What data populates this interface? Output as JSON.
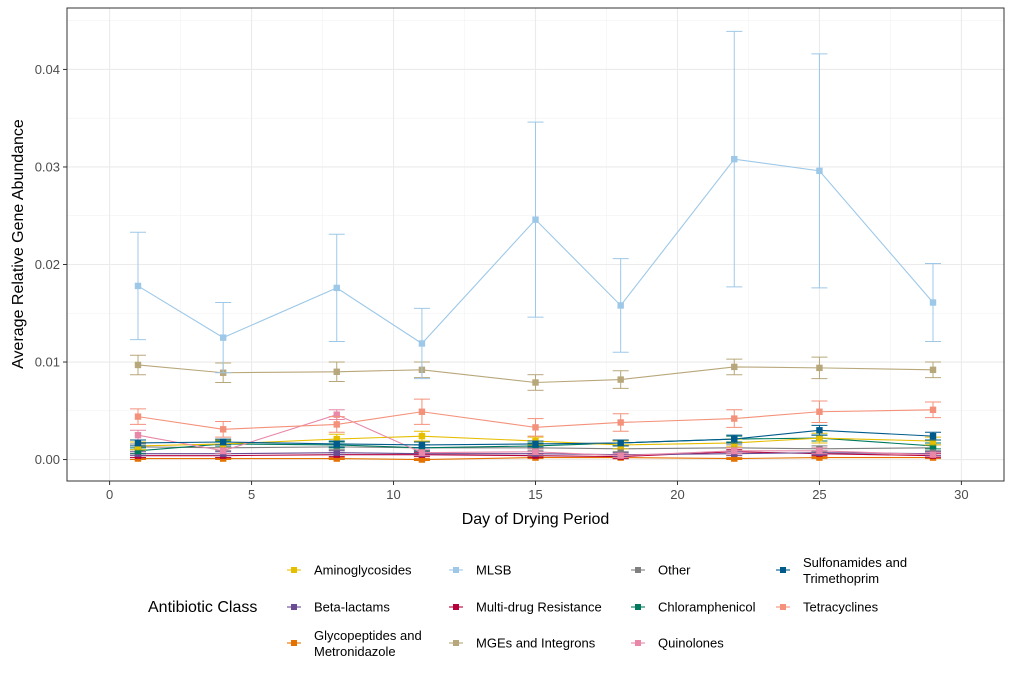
{
  "chart_data": {
    "type": "line",
    "title": "",
    "xlabel": "Day of Drying Period",
    "ylabel": "Average Relative Gene Abundance",
    "xlim": [
      -1.5,
      31.5
    ],
    "ylim": [
      -0.0022,
      0.0463
    ],
    "x_ticks": [
      0,
      5,
      10,
      15,
      20,
      25,
      30
    ],
    "y_ticks": [
      0.0,
      0.01,
      0.02,
      0.03,
      0.04
    ],
    "y_tick_labels": [
      "0.00",
      "0.01",
      "0.02",
      "0.03",
      "0.04"
    ],
    "x_tick_labels": [
      "0",
      "5",
      "10",
      "15",
      "20",
      "25",
      "30"
    ],
    "grid": true,
    "legend_title": "Antibiotic Class",
    "legend_position": "bottom",
    "x": [
      1,
      4,
      8,
      11,
      15,
      18,
      22,
      25,
      29
    ],
    "series": [
      {
        "name": "Aminoglycosides",
        "color": "#E6BE00",
        "values": [
          0.0014,
          0.0016,
          0.0021,
          0.0024,
          0.0019,
          0.0015,
          0.0017,
          0.0022,
          0.0019
        ],
        "errors": [
          0.0004,
          0.0004,
          0.0005,
          0.0005,
          0.0004,
          0.0004,
          0.0004,
          0.0005,
          0.0004
        ]
      },
      {
        "name": "Beta-lactams",
        "color": "#6A4C93",
        "values": [
          0.0006,
          0.0006,
          0.0007,
          0.0006,
          0.0006,
          0.0005,
          0.0006,
          0.0007,
          0.0006
        ],
        "errors": [
          0.0002,
          0.0002,
          0.0002,
          0.0002,
          0.0002,
          0.0002,
          0.0002,
          0.0002,
          0.0002
        ]
      },
      {
        "name": "Glycopeptides and\nMetronidazole",
        "color": "#E57200",
        "values": [
          0.0001,
          0.0001,
          0.0001,
          0.0,
          0.0002,
          0.0002,
          0.0001,
          0.0002,
          0.0002
        ],
        "errors": [
          0.0001,
          0.0001,
          0.0001,
          0.0001,
          0.0001,
          0.0001,
          0.0001,
          0.0001,
          0.0001
        ]
      },
      {
        "name": "MLSB",
        "color": "#9DC8E8",
        "values": [
          0.0178,
          0.0125,
          0.0176,
          0.0119,
          0.0246,
          0.0158,
          0.0308,
          0.0296,
          0.0161
        ],
        "errors": [
          0.0055,
          0.0036,
          0.0055,
          0.0036,
          0.01,
          0.0048,
          0.0131,
          0.012,
          0.004
        ]
      },
      {
        "name": "Multi-drug Resistance",
        "color": "#B5003B",
        "values": [
          0.0004,
          0.0004,
          0.0005,
          0.0005,
          0.0004,
          0.0003,
          0.0008,
          0.0006,
          0.0004
        ],
        "errors": [
          0.0002,
          0.0002,
          0.0002,
          0.0002,
          0.0002,
          0.0002,
          0.0002,
          0.0002,
          0.0002
        ]
      },
      {
        "name": "MGEs and Integrons",
        "color": "#B8A77A",
        "values": [
          0.0097,
          0.0089,
          0.009,
          0.0092,
          0.0079,
          0.0082,
          0.0095,
          0.0094,
          0.0092
        ],
        "errors": [
          0.001,
          0.001,
          0.001,
          0.0008,
          0.0008,
          0.0009,
          0.0008,
          0.0011,
          0.0008
        ]
      },
      {
        "name": "Other",
        "color": "#7F7F7F",
        "values": [
          0.0013,
          0.0012,
          0.0013,
          0.0012,
          0.0012,
          0.0011,
          0.0012,
          0.0011,
          0.0012
        ],
        "errors": [
          0.0003,
          0.0003,
          0.0003,
          0.0003,
          0.0003,
          0.0003,
          0.0003,
          0.0003,
          0.0003
        ]
      },
      {
        "name": "Chloramphenicol",
        "color": "#007A5E",
        "values": [
          0.0009,
          0.0016,
          0.0015,
          0.0012,
          0.0014,
          0.0017,
          0.0021,
          0.0022,
          0.0014
        ],
        "errors": [
          0.0003,
          0.0003,
          0.0003,
          0.0003,
          0.0003,
          0.0003,
          0.0003,
          0.0003,
          0.0003
        ]
      },
      {
        "name": "Quinolones",
        "color": "#E887A8",
        "values": [
          0.0025,
          0.0009,
          0.0046,
          0.0007,
          0.0008,
          0.0004,
          0.0009,
          0.0009,
          0.0005
        ],
        "errors": [
          0.0005,
          0.0003,
          0.0005,
          0.0003,
          0.0003,
          0.0002,
          0.0003,
          0.0003,
          0.0002
        ]
      },
      {
        "name": "Sulfonamides and\nTrimethoprim",
        "color": "#005B8C",
        "values": [
          0.0017,
          0.0018,
          0.0016,
          0.0015,
          0.0016,
          0.0017,
          0.0021,
          0.003,
          0.0024
        ],
        "errors": [
          0.0003,
          0.0003,
          0.0003,
          0.0003,
          0.0003,
          0.0003,
          0.0004,
          0.0005,
          0.0004
        ]
      },
      {
        "name": "Tetracyclines",
        "color": "#F4917A",
        "values": [
          0.0044,
          0.0031,
          0.0036,
          0.0049,
          0.0033,
          0.0038,
          0.0042,
          0.0049,
          0.0051
        ],
        "errors": [
          0.0008,
          0.0008,
          0.0008,
          0.0013,
          0.0009,
          0.0009,
          0.0009,
          0.0011,
          0.0008
        ]
      }
    ]
  }
}
